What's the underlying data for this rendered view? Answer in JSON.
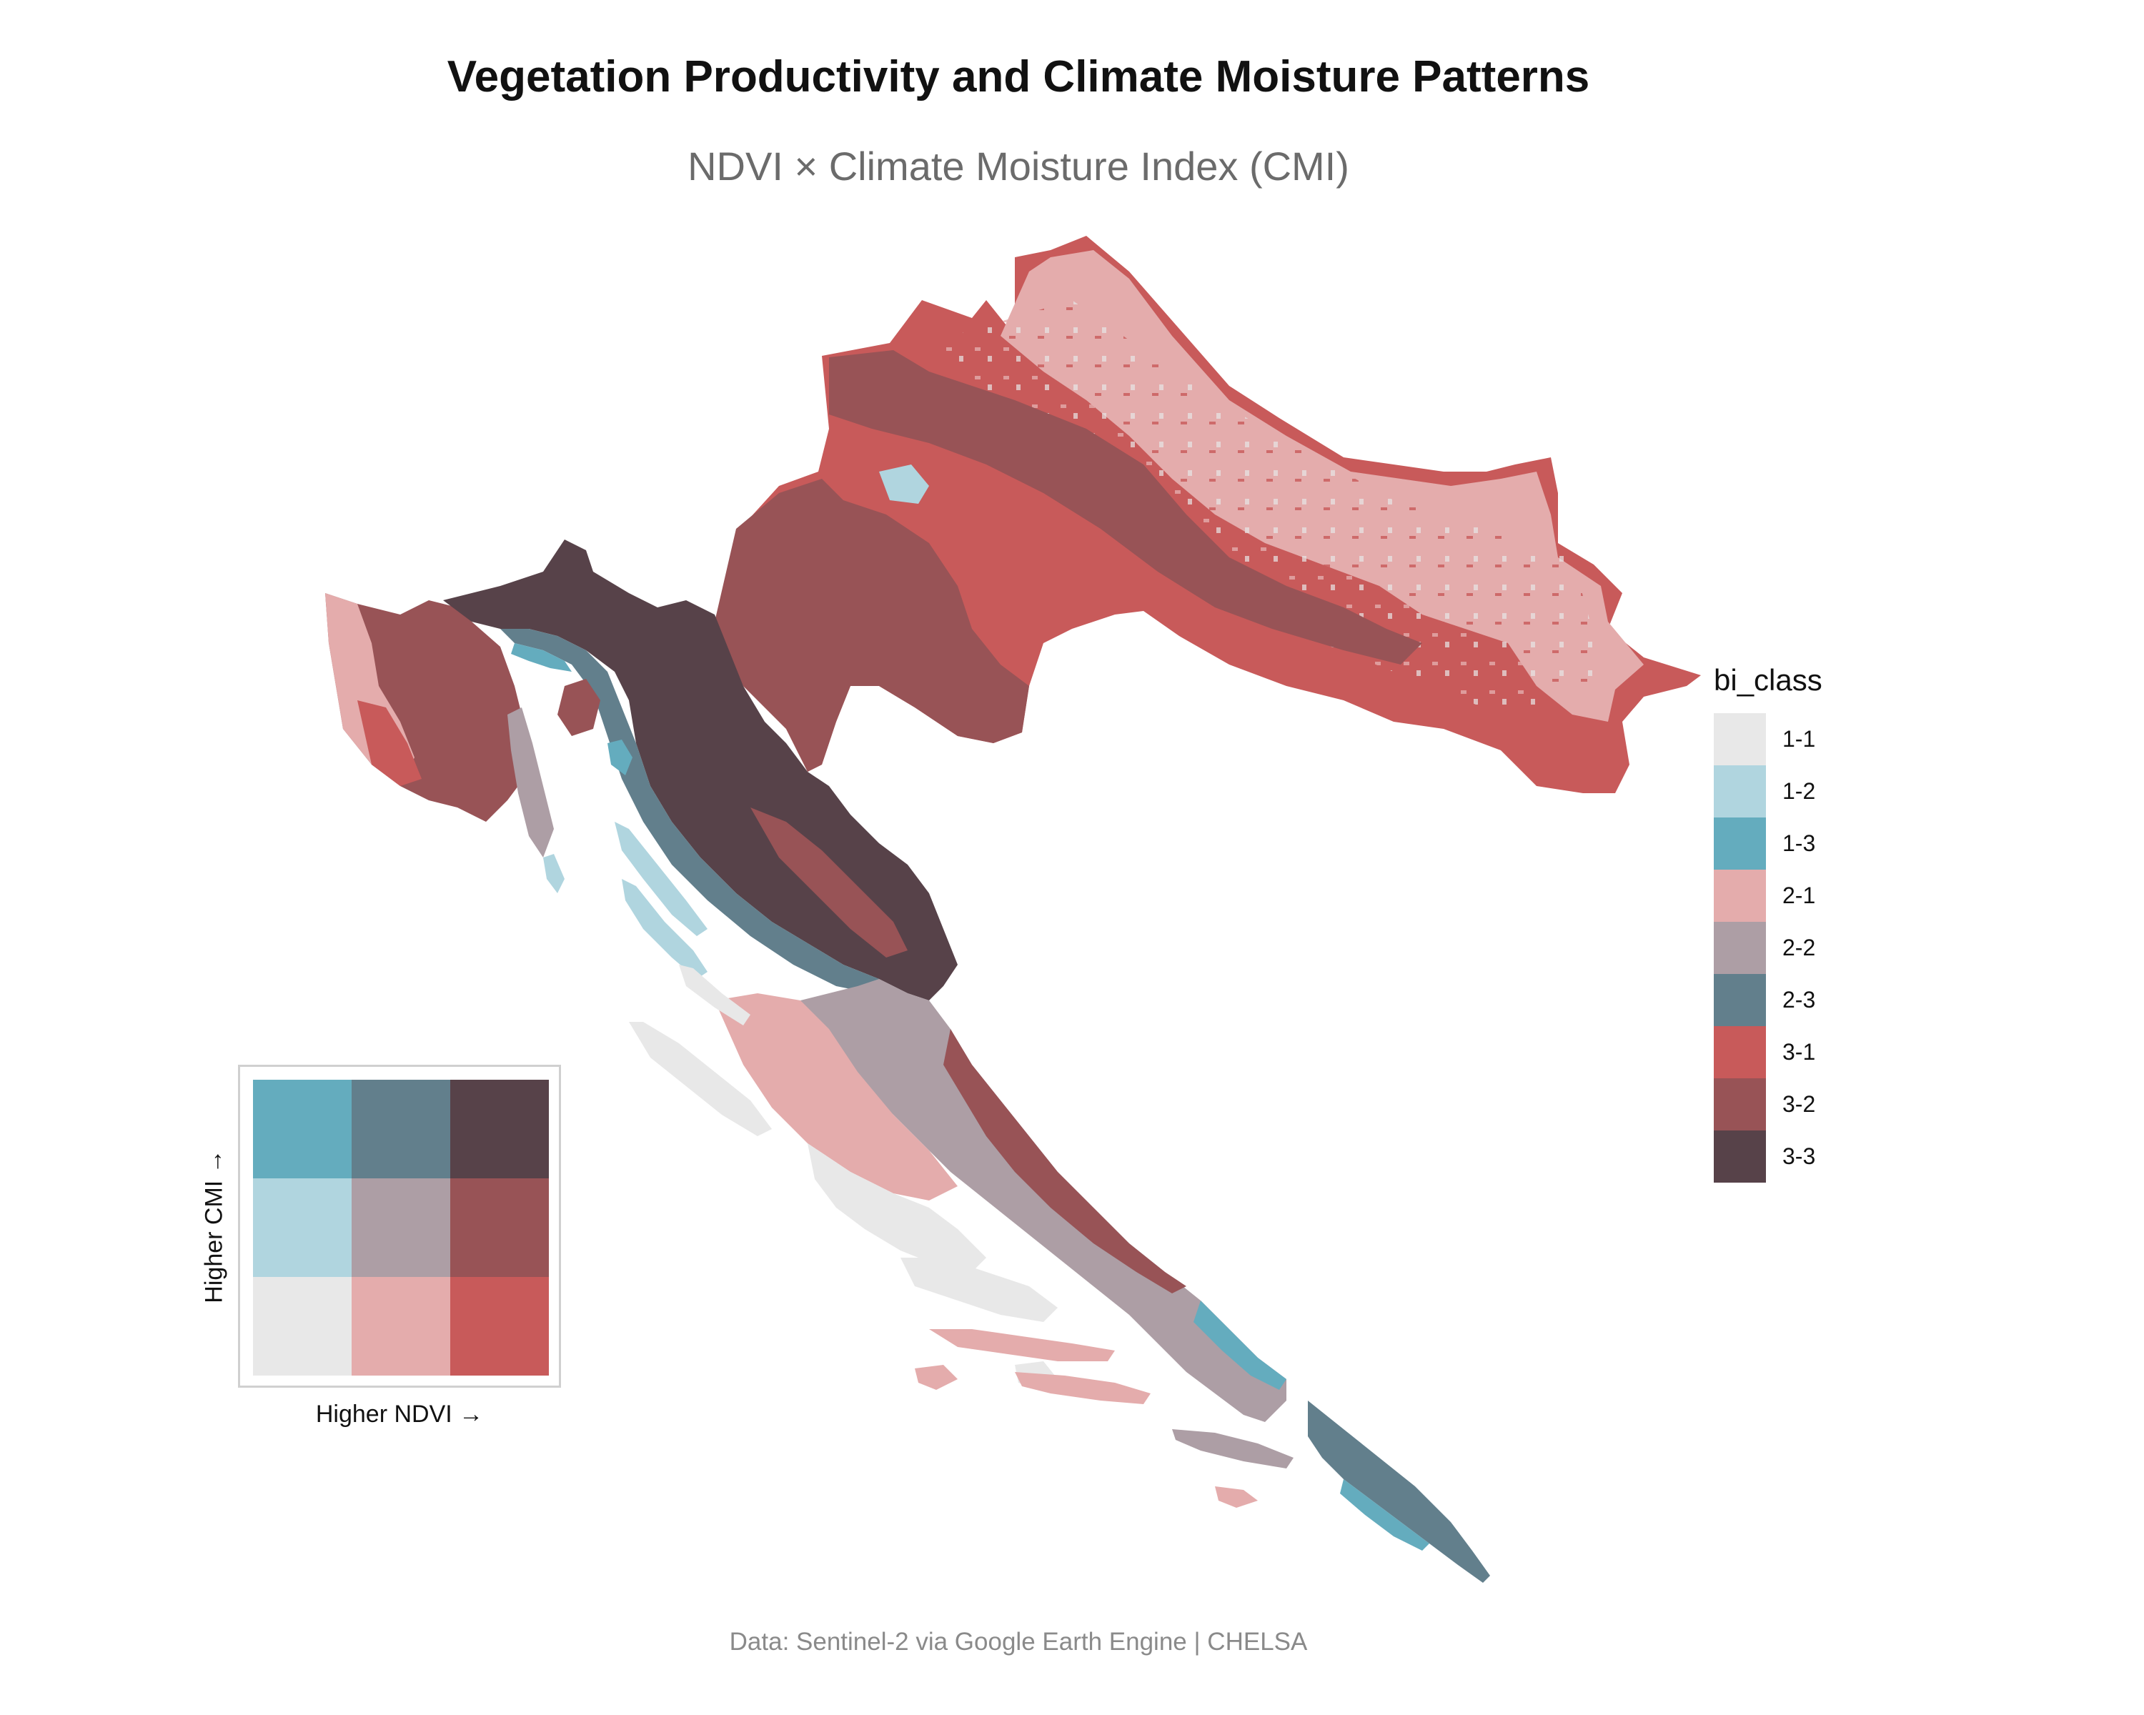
{
  "title": "Vegetation Productivity and Climate Moisture Patterns",
  "subtitle": "NDVI × Climate Moisture Index (CMI)",
  "caption": "Data: Sentinel-2 via Google Earth Engine | CHELSA",
  "legend": {
    "title": "bi_class",
    "items": [
      {
        "label": "1-1",
        "color": "#e8e8e8"
      },
      {
        "label": "1-2",
        "color": "#b0d5df"
      },
      {
        "label": "1-3",
        "color": "#64acbe"
      },
      {
        "label": "2-1",
        "color": "#e4acac"
      },
      {
        "label": "2-2",
        "color": "#ad9ea5"
      },
      {
        "label": "2-3",
        "color": "#627f8c"
      },
      {
        "label": "3-1",
        "color": "#c85a5a"
      },
      {
        "label": "3-2",
        "color": "#985356"
      },
      {
        "label": "3-3",
        "color": "#574249"
      }
    ]
  },
  "bivariate_key": {
    "x_label": "Higher NDVI →",
    "y_label": "Higher CMI →"
  }
}
